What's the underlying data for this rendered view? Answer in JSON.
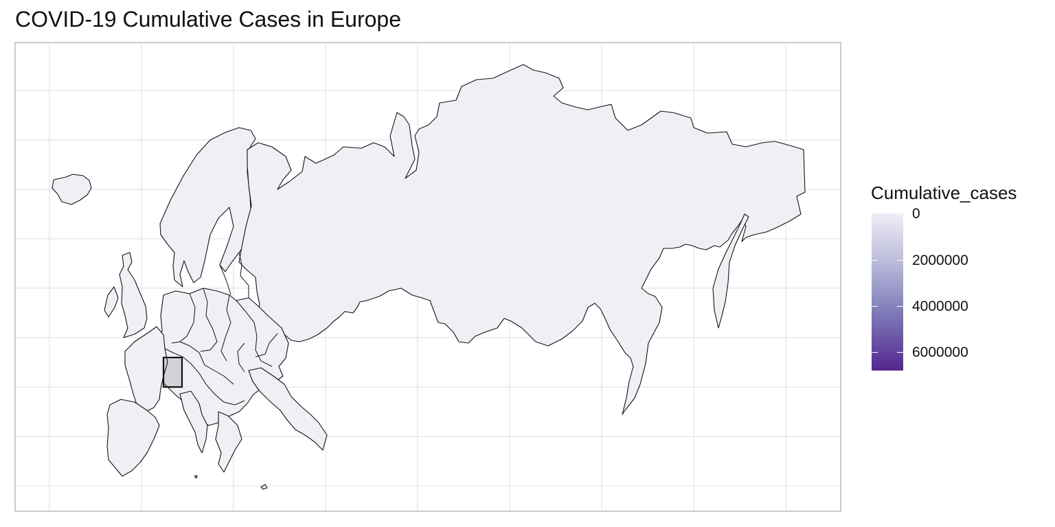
{
  "title": "COVID-19 Cumulative Cases in Europe",
  "colors": {
    "land_fill": "#f0eff5",
    "outline": "#111111",
    "grid": "#dcdcdc",
    "panel_border": "#aaaaaa",
    "scale_low": "#efedf5",
    "scale_high": "#54278f"
  },
  "legend": {
    "title": "Cumulative_cases",
    "ticks": [
      "0",
      "2000000",
      "4000000",
      "6000000"
    ]
  },
  "map": {
    "grid": true,
    "highlight_box": true
  }
}
